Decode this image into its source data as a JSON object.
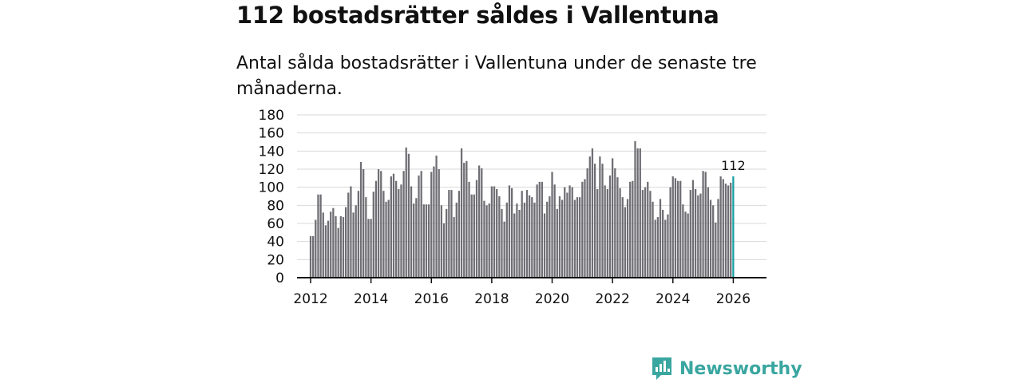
{
  "title": "112 bostadsrätter såldes i Vallentuna",
  "subtitle": "Antal sålda bostadsrätter i Vallentuna under de senaste tre månaderna.",
  "brand": {
    "name": "Newsworthy",
    "icon": "newsworthy-logo-icon"
  },
  "colors": {
    "bar": "#6f6e74",
    "highlight": "#17a0a5",
    "brand": "#3aa6a0"
  },
  "chart_data": {
    "type": "bar",
    "title": "112 bostadsrätter såldes i Vallentuna",
    "xlabel": "",
    "ylabel": "",
    "ylim": [
      0,
      180
    ],
    "yticks": [
      0,
      20,
      40,
      60,
      80,
      100,
      120,
      140,
      160,
      180
    ],
    "xticks": [
      "2012",
      "2014",
      "2016",
      "2018",
      "2020",
      "2022",
      "2024",
      "2026"
    ],
    "xrange": [
      2011.55,
      2027.1
    ],
    "x_start": 2012.0,
    "x_step": 0.08333,
    "grid": true,
    "last_label": "112",
    "values": [
      46,
      46,
      64,
      92,
      92,
      72,
      58,
      63,
      73,
      77,
      68,
      55,
      68,
      67,
      78,
      94,
      101,
      72,
      80,
      96,
      128,
      120,
      89,
      65,
      65,
      95,
      107,
      120,
      118,
      96,
      84,
      86,
      112,
      115,
      107,
      98,
      103,
      118,
      144,
      137,
      101,
      82,
      88,
      113,
      118,
      81,
      81,
      81,
      117,
      123,
      135,
      120,
      80,
      60,
      76,
      97,
      97,
      67,
      83,
      96,
      143,
      127,
      129,
      106,
      92,
      92,
      108,
      124,
      121,
      85,
      80,
      82,
      101,
      101,
      98,
      90,
      76,
      62,
      83,
      102,
      99,
      71,
      82,
      75,
      96,
      83,
      97,
      91,
      89,
      83,
      103,
      106,
      106,
      71,
      84,
      90,
      117,
      103,
      76,
      90,
      86,
      100,
      94,
      102,
      100,
      86,
      89,
      89,
      106,
      109,
      121,
      134,
      143,
      126,
      98,
      134,
      126,
      102,
      98,
      113,
      132,
      121,
      111,
      99,
      89,
      78,
      87,
      106,
      107,
      151,
      143,
      143,
      97,
      100,
      106,
      96,
      84,
      64,
      67,
      87,
      75,
      64,
      70,
      100,
      112,
      110,
      107,
      107,
      81,
      73,
      71,
      97,
      108,
      98,
      91,
      93,
      118,
      117,
      100,
      86,
      80,
      61,
      87,
      112,
      109,
      104,
      102,
      105,
      112
    ]
  }
}
